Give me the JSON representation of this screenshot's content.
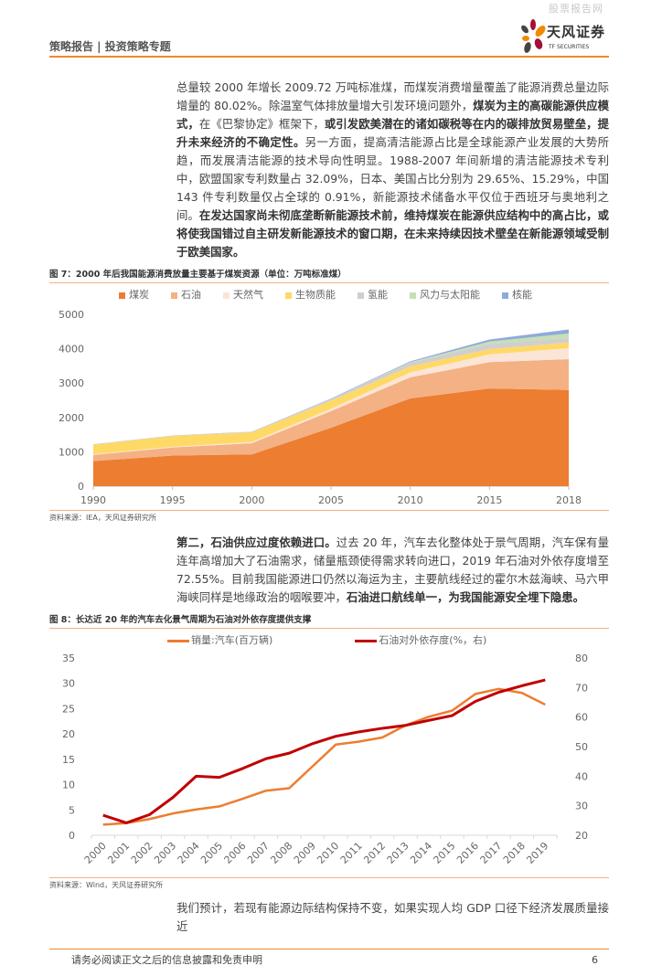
{
  "watermark": "股票报告网",
  "header": {
    "title": "策略报告 | 投资策略专题",
    "logo_name": "天风证券",
    "logo_sub": "TF SECURITIES"
  },
  "para1": [
    {
      "t": "总量较 2000 年增长 2009.72 万吨标准煤，而煤炭消费增量覆盖了能源消费总量边际增量的 80.02%。除温室气体排放量增大引发环境问题外，",
      "b": false
    },
    {
      "t": "煤炭为主的高碳能源供应模式，",
      "b": true
    },
    {
      "t": "在《巴黎协定》框架下，",
      "b": false
    },
    {
      "t": "或引发欧美潜在的诸如碳税等在内的碳排放贸易壁垒，提升未来经济的不确定性。",
      "b": true
    },
    {
      "t": "另一方面，提高清洁能源占比是全球能源产业发展的大势所趋，而发展清洁能源的技术导向性明显。1988-2007 年间新增的清洁能源技术专利中，欧盟国家专利数量占 32.09%，日本、美国占比分别为 29.65%、15.29%，中国 143 件专利数量仅占全球的 0.91%，新能源技术储备水平仅位于西班牙与奥地利之间。",
      "b": false
    },
    {
      "t": "在发达国家尚未彻底垄断新能源技术前，维持煤炭在能源供应结构中的高占比，或将使我国错过自主研发新能源技术的窗口期，在未来持续因技术壁垒在新能源领域受制于欧美国家。",
      "b": true
    }
  ],
  "fig7": {
    "caption": "图 7：2000 年后我国能源消费放量主要基于煤炭资源（单位：万吨标准煤）",
    "source": "资料来源：IEA，天风证券研究所"
  },
  "para2": [
    {
      "t": "第二，石油供应过度依赖进口。",
      "b": true
    },
    {
      "t": "过去 20 年，汽车去化整体处于景气周期，汽车保有量连年高增加大了石油需求，储量瓶颈使得需求转向进口，2019 年石油对外依存度增至 72.55%。目前我国能源进口仍然以海运为主，主要航线经过的霍尔木兹海峡、马六甲海峡同样是地缘政治的咽喉要冲，",
      "b": false
    },
    {
      "t": "石油进口航线单一，为我国能源安全埋下隐患。",
      "b": true
    }
  ],
  "fig8": {
    "caption": "图 8：长达近 20 年的汽车去化景气周期为石油对外依存度提供支撑",
    "source": "资料来源：Wind，天风证券研究所"
  },
  "para3": "我们预计，若现有能源边际结构保持不变，如果实现人均 GDP 口径下经济发展质量接近",
  "footer": {
    "disclaimer": "请务必阅读正文之后的信息披露和免责申明",
    "page": "6"
  },
  "chart_data": [
    {
      "type": "area",
      "stacked": true,
      "categories": [
        "1990",
        "1995",
        "2000",
        "2005",
        "2010",
        "2015",
        "2018"
      ],
      "ylim": [
        0,
        5000
      ],
      "yticks": [
        "0",
        "1000",
        "2000",
        "3000",
        "4000",
        "5000"
      ],
      "legend_position": "top",
      "series": [
        {
          "name": "煤炭",
          "color": "#ed7d31",
          "values": [
            730,
            890,
            925,
            1700,
            2553,
            2843,
            2800
          ]
        },
        {
          "name": "石油",
          "color": "#f4b183",
          "values": [
            177,
            237,
            325,
            483,
            616,
            766,
            898
          ]
        },
        {
          "name": "天然气",
          "color": "#fbe5d6",
          "values": [
            20,
            20,
            35,
            70,
            141,
            229,
            317
          ]
        },
        {
          "name": "生物质能",
          "color": "#ffd966",
          "values": [
            280,
            314,
            282,
            236,
            176,
            150,
            167
          ]
        },
        {
          "name": "氢能",
          "color": "#d0cece",
          "values": [
            15,
            15,
            15,
            45,
            106,
            149,
            132
          ]
        },
        {
          "name": "风力与太阳能",
          "color": "#c5e0b4",
          "values": [
            0,
            0,
            0,
            2,
            18,
            71,
            132
          ]
        },
        {
          "name": "核能",
          "color": "#8faadc",
          "values": [
            0,
            0,
            5,
            15,
            25,
            61,
            115
          ]
        }
      ]
    },
    {
      "type": "line",
      "categories": [
        "2000",
        "2001",
        "2002",
        "2003",
        "2004",
        "2005",
        "2006",
        "2007",
        "2008",
        "2009",
        "2010",
        "2011",
        "2012",
        "2013",
        "2014",
        "2015",
        "2016",
        "2017",
        "2018",
        "2019"
      ],
      "ylim_left": [
        0,
        35
      ],
      "yticks_left": [
        "0",
        "5",
        "10",
        "15",
        "20",
        "25",
        "30",
        "35"
      ],
      "ylim_right": [
        20,
        80
      ],
      "yticks_right": [
        "20",
        "30",
        "40",
        "50",
        "60",
        "70",
        "80"
      ],
      "legend_position": "top",
      "series": [
        {
          "name": "销量:汽车(百万辆)",
          "axis": "left",
          "color": "#ed7d31",
          "values": [
            2.1,
            2.4,
            3.2,
            4.3,
            5.1,
            5.7,
            7.2,
            8.8,
            9.3,
            13.6,
            17.9,
            18.5,
            19.3,
            21.7,
            23.4,
            24.6,
            27.9,
            28.9,
            28.1,
            25.8
          ]
        },
        {
          "name": "石油对外依存度(%，右)",
          "axis": "right",
          "color": "#c00000",
          "values": [
            26.8,
            24.2,
            27.0,
            32.8,
            40.0,
            39.6,
            42.6,
            45.9,
            47.8,
            51.0,
            53.5,
            55.0,
            56.2,
            57.2,
            58.9,
            60.5,
            65.3,
            68.4,
            70.6,
            72.55
          ]
        }
      ]
    }
  ]
}
